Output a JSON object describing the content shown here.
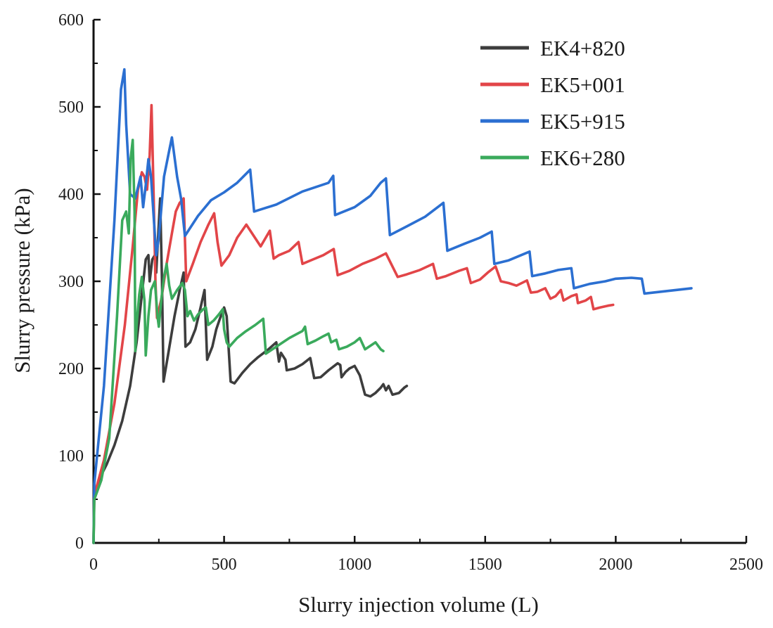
{
  "chart_data": {
    "type": "line",
    "title": "",
    "xlabel": "Slurry injection volume (L)",
    "ylabel": "Slurry pressure (kPa)",
    "xlim": [
      0,
      2500
    ],
    "ylim": [
      0,
      600
    ],
    "x_ticks": [
      0,
      500,
      1000,
      1500,
      2000,
      2500
    ],
    "y_ticks": [
      0,
      100,
      200,
      300,
      400,
      500,
      600
    ],
    "x_tick_labels": [
      "0",
      "500",
      "1000",
      "1500",
      "2000",
      "2500"
    ],
    "y_tick_labels": [
      "0",
      "100",
      "200",
      "300",
      "400",
      "500",
      "600"
    ],
    "grid": false,
    "legend_position": "top-right",
    "series": [
      {
        "name": "EK4+820",
        "color": "#3d3d3d",
        "points": [
          [
            0,
            0
          ],
          [
            2,
            50
          ],
          [
            20,
            72
          ],
          [
            50,
            90
          ],
          [
            80,
            112
          ],
          [
            110,
            140
          ],
          [
            140,
            180
          ],
          [
            165,
            230
          ],
          [
            185,
            285
          ],
          [
            200,
            325
          ],
          [
            210,
            330
          ],
          [
            215,
            300
          ],
          [
            225,
            325
          ],
          [
            235,
            330
          ],
          [
            240,
            310
          ],
          [
            255,
            395
          ],
          [
            262,
            300
          ],
          [
            268,
            185
          ],
          [
            285,
            215
          ],
          [
            310,
            260
          ],
          [
            330,
            290
          ],
          [
            345,
            310
          ],
          [
            352,
            225
          ],
          [
            370,
            230
          ],
          [
            390,
            245
          ],
          [
            410,
            270
          ],
          [
            425,
            290
          ],
          [
            435,
            210
          ],
          [
            455,
            225
          ],
          [
            470,
            245
          ],
          [
            485,
            258
          ],
          [
            500,
            270
          ],
          [
            510,
            260
          ],
          [
            525,
            185
          ],
          [
            540,
            183
          ],
          [
            570,
            195
          ],
          [
            600,
            205
          ],
          [
            630,
            213
          ],
          [
            670,
            222
          ],
          [
            700,
            230
          ],
          [
            710,
            208
          ],
          [
            718,
            218
          ],
          [
            735,
            210
          ],
          [
            740,
            198
          ],
          [
            770,
            200
          ],
          [
            800,
            205
          ],
          [
            830,
            212
          ],
          [
            845,
            189
          ],
          [
            870,
            190
          ],
          [
            900,
            198
          ],
          [
            935,
            206
          ],
          [
            945,
            204
          ],
          [
            950,
            190
          ],
          [
            965,
            196
          ],
          [
            980,
            200
          ],
          [
            1000,
            203
          ],
          [
            1020,
            192
          ],
          [
            1040,
            170
          ],
          [
            1060,
            168
          ],
          [
            1080,
            172
          ],
          [
            1100,
            178
          ],
          [
            1110,
            182
          ],
          [
            1120,
            175
          ],
          [
            1130,
            180
          ],
          [
            1145,
            170
          ],
          [
            1170,
            172
          ],
          [
            1190,
            178
          ],
          [
            1200,
            180
          ]
        ]
      },
      {
        "name": "EK5+001",
        "color": "#e24548",
        "points": [
          [
            0,
            0
          ],
          [
            3,
            55
          ],
          [
            40,
            95
          ],
          [
            80,
            160
          ],
          [
            120,
            250
          ],
          [
            150,
            340
          ],
          [
            170,
            405
          ],
          [
            185,
            425
          ],
          [
            195,
            420
          ],
          [
            205,
            405
          ],
          [
            215,
            445
          ],
          [
            222,
            502
          ],
          [
            230,
            400
          ],
          [
            237,
            300
          ],
          [
            243,
            258
          ],
          [
            260,
            280
          ],
          [
            280,
            320
          ],
          [
            300,
            355
          ],
          [
            315,
            380
          ],
          [
            330,
            390
          ],
          [
            345,
            395
          ],
          [
            355,
            300
          ],
          [
            380,
            320
          ],
          [
            410,
            345
          ],
          [
            440,
            365
          ],
          [
            462,
            378
          ],
          [
            475,
            345
          ],
          [
            490,
            318
          ],
          [
            520,
            330
          ],
          [
            550,
            350
          ],
          [
            585,
            365
          ],
          [
            640,
            340
          ],
          [
            675,
            358
          ],
          [
            690,
            326
          ],
          [
            710,
            330
          ],
          [
            750,
            335
          ],
          [
            785,
            345
          ],
          [
            800,
            320
          ],
          [
            840,
            325
          ],
          [
            880,
            330
          ],
          [
            920,
            337
          ],
          [
            935,
            307
          ],
          [
            980,
            312
          ],
          [
            1030,
            320
          ],
          [
            1080,
            326
          ],
          [
            1120,
            332
          ],
          [
            1165,
            305
          ],
          [
            1200,
            308
          ],
          [
            1250,
            313
          ],
          [
            1300,
            320
          ],
          [
            1315,
            303
          ],
          [
            1350,
            306
          ],
          [
            1400,
            312
          ],
          [
            1430,
            315
          ],
          [
            1445,
            298
          ],
          [
            1480,
            302
          ],
          [
            1510,
            310
          ],
          [
            1540,
            317
          ],
          [
            1560,
            300
          ],
          [
            1590,
            298
          ],
          [
            1620,
            295
          ],
          [
            1660,
            301
          ],
          [
            1675,
            287
          ],
          [
            1700,
            288
          ],
          [
            1730,
            292
          ],
          [
            1750,
            280
          ],
          [
            1770,
            283
          ],
          [
            1790,
            290
          ],
          [
            1800,
            278
          ],
          [
            1830,
            283
          ],
          [
            1850,
            285
          ],
          [
            1855,
            275
          ],
          [
            1885,
            278
          ],
          [
            1905,
            282
          ],
          [
            1915,
            268
          ],
          [
            1940,
            270
          ],
          [
            1970,
            272
          ],
          [
            1990,
            273
          ]
        ]
      },
      {
        "name": "EK5+915",
        "color": "#2b6fd1",
        "points": [
          [
            0,
            0
          ],
          [
            3,
            68
          ],
          [
            40,
            180
          ],
          [
            80,
            370
          ],
          [
            105,
            520
          ],
          [
            118,
            543
          ],
          [
            125,
            480
          ],
          [
            140,
            400
          ],
          [
            160,
            395
          ],
          [
            180,
            420
          ],
          [
            190,
            385
          ],
          [
            200,
            410
          ],
          [
            210,
            440
          ],
          [
            220,
            420
          ],
          [
            240,
            330
          ],
          [
            250,
            350
          ],
          [
            270,
            420
          ],
          [
            290,
            450
          ],
          [
            300,
            465
          ],
          [
            320,
            420
          ],
          [
            335,
            395
          ],
          [
            350,
            352
          ],
          [
            400,
            375
          ],
          [
            450,
            393
          ],
          [
            500,
            402
          ],
          [
            550,
            413
          ],
          [
            600,
            428
          ],
          [
            615,
            380
          ],
          [
            700,
            388
          ],
          [
            800,
            403
          ],
          [
            900,
            413
          ],
          [
            918,
            421
          ],
          [
            925,
            376
          ],
          [
            1000,
            385
          ],
          [
            1060,
            398
          ],
          [
            1100,
            413
          ],
          [
            1120,
            418
          ],
          [
            1135,
            353
          ],
          [
            1200,
            363
          ],
          [
            1270,
            374
          ],
          [
            1340,
            390
          ],
          [
            1355,
            335
          ],
          [
            1420,
            343
          ],
          [
            1480,
            350
          ],
          [
            1525,
            357
          ],
          [
            1535,
            320
          ],
          [
            1590,
            324
          ],
          [
            1670,
            334
          ],
          [
            1680,
            306
          ],
          [
            1730,
            309
          ],
          [
            1780,
            313
          ],
          [
            1830,
            315
          ],
          [
            1840,
            292
          ],
          [
            1900,
            297
          ],
          [
            1960,
            300
          ],
          [
            2000,
            303
          ],
          [
            2060,
            304
          ],
          [
            2100,
            303
          ],
          [
            2110,
            286
          ],
          [
            2170,
            288
          ],
          [
            2230,
            290
          ],
          [
            2290,
            292
          ]
        ]
      },
      {
        "name": "EK6+280",
        "color": "#3aaa5c",
        "points": [
          [
            0,
            0
          ],
          [
            3,
            50
          ],
          [
            30,
            72
          ],
          [
            60,
            120
          ],
          [
            90,
            260
          ],
          [
            110,
            370
          ],
          [
            125,
            380
          ],
          [
            135,
            355
          ],
          [
            142,
            440
          ],
          [
            150,
            462
          ],
          [
            157,
            380
          ],
          [
            160,
            220
          ],
          [
            165,
            250
          ],
          [
            175,
            285
          ],
          [
            185,
            305
          ],
          [
            195,
            278
          ],
          [
            200,
            215
          ],
          [
            210,
            260
          ],
          [
            220,
            290
          ],
          [
            235,
            300
          ],
          [
            245,
            260
          ],
          [
            250,
            248
          ],
          [
            260,
            280
          ],
          [
            270,
            305
          ],
          [
            280,
            320
          ],
          [
            290,
            295
          ],
          [
            300,
            280
          ],
          [
            320,
            290
          ],
          [
            340,
            298
          ],
          [
            350,
            290
          ],
          [
            360,
            260
          ],
          [
            370,
            266
          ],
          [
            385,
            255
          ],
          [
            400,
            262
          ],
          [
            420,
            268
          ],
          [
            430,
            270
          ],
          [
            440,
            250
          ],
          [
            460,
            255
          ],
          [
            480,
            262
          ],
          [
            495,
            268
          ],
          [
            500,
            245
          ],
          [
            510,
            230
          ],
          [
            520,
            225
          ],
          [
            550,
            235
          ],
          [
            580,
            242
          ],
          [
            620,
            250
          ],
          [
            650,
            257
          ],
          [
            660,
            217
          ],
          [
            700,
            225
          ],
          [
            750,
            235
          ],
          [
            800,
            243
          ],
          [
            810,
            248
          ],
          [
            820,
            228
          ],
          [
            850,
            232
          ],
          [
            880,
            237
          ],
          [
            900,
            240
          ],
          [
            910,
            230
          ],
          [
            930,
            233
          ],
          [
            940,
            222
          ],
          [
            970,
            225
          ],
          [
            1000,
            230
          ],
          [
            1020,
            235
          ],
          [
            1040,
            222
          ],
          [
            1060,
            226
          ],
          [
            1080,
            230
          ],
          [
            1100,
            222
          ],
          [
            1110,
            220
          ]
        ]
      }
    ]
  }
}
